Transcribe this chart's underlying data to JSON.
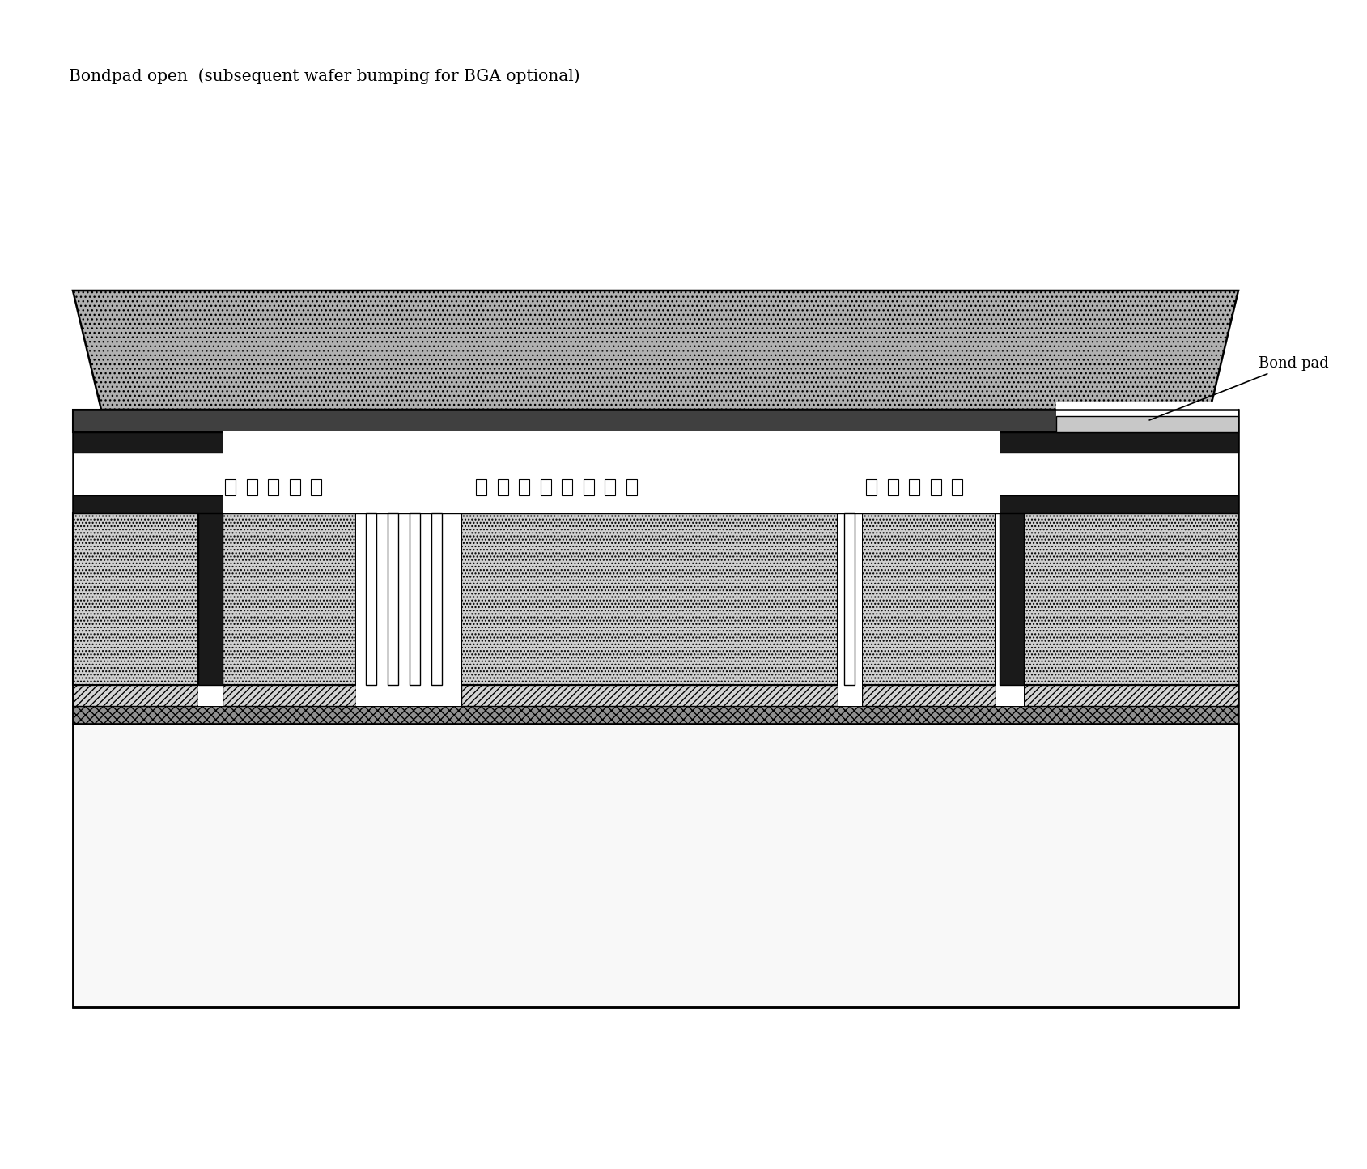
{
  "title": "Bondpad open  (subsequent wafer bumping for BGA optional)",
  "bond_pad_label": "Bond pad",
  "bg_color": "#ffffff",
  "title_fontsize": 14.5,
  "label_fontsize": 13,
  "fig_w": 16.89,
  "fig_h": 14.44,
  "colors": {
    "white": "#ffffff",
    "black": "#000000",
    "near_black": "#1a1a1a",
    "dark_gray": "#404040",
    "med_gray": "#888888",
    "light_gray": "#c8c8c8",
    "cap_gray": "#b0b0b0",
    "dot_gray": "#d0d0d0",
    "hatch_gray": "#d4d4d4",
    "cross_gray": "#909090",
    "substrate_white": "#f8f8f8"
  }
}
